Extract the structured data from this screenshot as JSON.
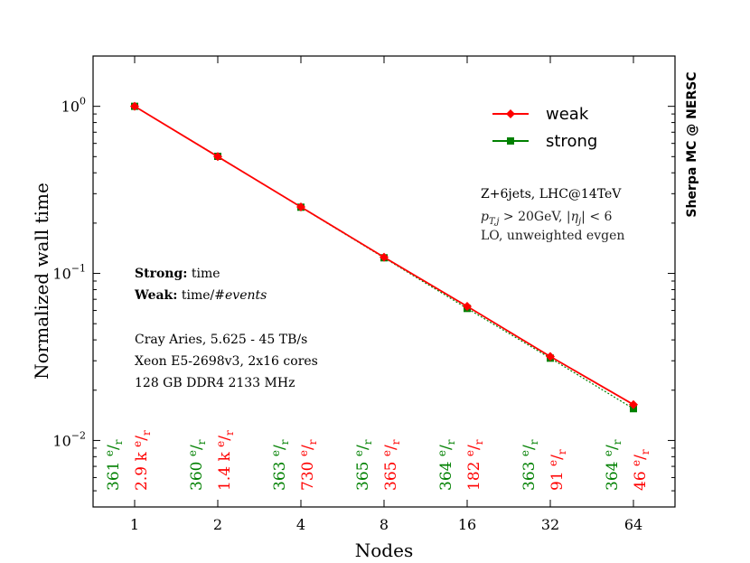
{
  "chart_data": {
    "type": "line",
    "xlabel": "Nodes",
    "ylabel": "Normalized wall time",
    "yscale": "log",
    "ylim": [
      0.004,
      2.0
    ],
    "categories": [
      "1",
      "2",
      "4",
      "8",
      "16",
      "32",
      "64"
    ],
    "y_ticks": [
      {
        "base": "10",
        "exp": "0",
        "value": 1
      },
      {
        "base": "10",
        "exp": "−1",
        "value": 0.1
      },
      {
        "base": "10",
        "exp": "−2",
        "value": 0.01
      }
    ],
    "series": [
      {
        "name": "weak",
        "color": "#ff0000",
        "marker": "diamond",
        "values": [
          1.0,
          0.5,
          0.25,
          0.125,
          0.0635,
          0.0318,
          0.0164
        ]
      },
      {
        "name": "strong",
        "color": "#008000",
        "marker": "square",
        "values": [
          1.0,
          0.502,
          0.249,
          0.124,
          0.0617,
          0.0311,
          0.0155
        ]
      }
    ],
    "legend": {
      "position": "top-right",
      "items": [
        "weak",
        "strong"
      ]
    },
    "side_label": "Sherpa MC @ NERSC",
    "process_title": "Z+6jets, LHC@14TeV",
    "cuts_label": "p_{T,j} > 20GeV, |η_j| < 6",
    "cuts_parts": {
      "p": "p",
      "sub": "T,j",
      "rest1": " > 20GeV, |",
      "eta": "η",
      "eta_sub": "j",
      "rest2": "| < 6"
    },
    "mode_label": "LO, unweighted evgen",
    "metric_labels": [
      {
        "bold": "Strong:",
        "text": " time"
      },
      {
        "bold": "Weak:",
        "text": " time/",
        "italic": "#events"
      }
    ],
    "hardware_lines": [
      "Cray Aries, 5.625 - 45 TB/s",
      "Xeon E5-2698v3, 2x16 cores",
      "128 GB DDR4 2133 MHz"
    ],
    "rates_unit": {
      "num": "e",
      "slash": "/",
      "den": "r"
    },
    "rates": [
      {
        "node": "1",
        "strong": "361",
        "weak": "2.9 k"
      },
      {
        "node": "2",
        "strong": "360",
        "weak": "1.4 k"
      },
      {
        "node": "4",
        "strong": "363",
        "weak": "730"
      },
      {
        "node": "8",
        "strong": "365",
        "weak": "365"
      },
      {
        "node": "16",
        "strong": "364",
        "weak": "182"
      },
      {
        "node": "32",
        "strong": "363",
        "weak": "91"
      },
      {
        "node": "64",
        "strong": "364",
        "weak": "46"
      }
    ],
    "colors": {
      "weak": "#ff0000",
      "strong": "#008000"
    }
  }
}
